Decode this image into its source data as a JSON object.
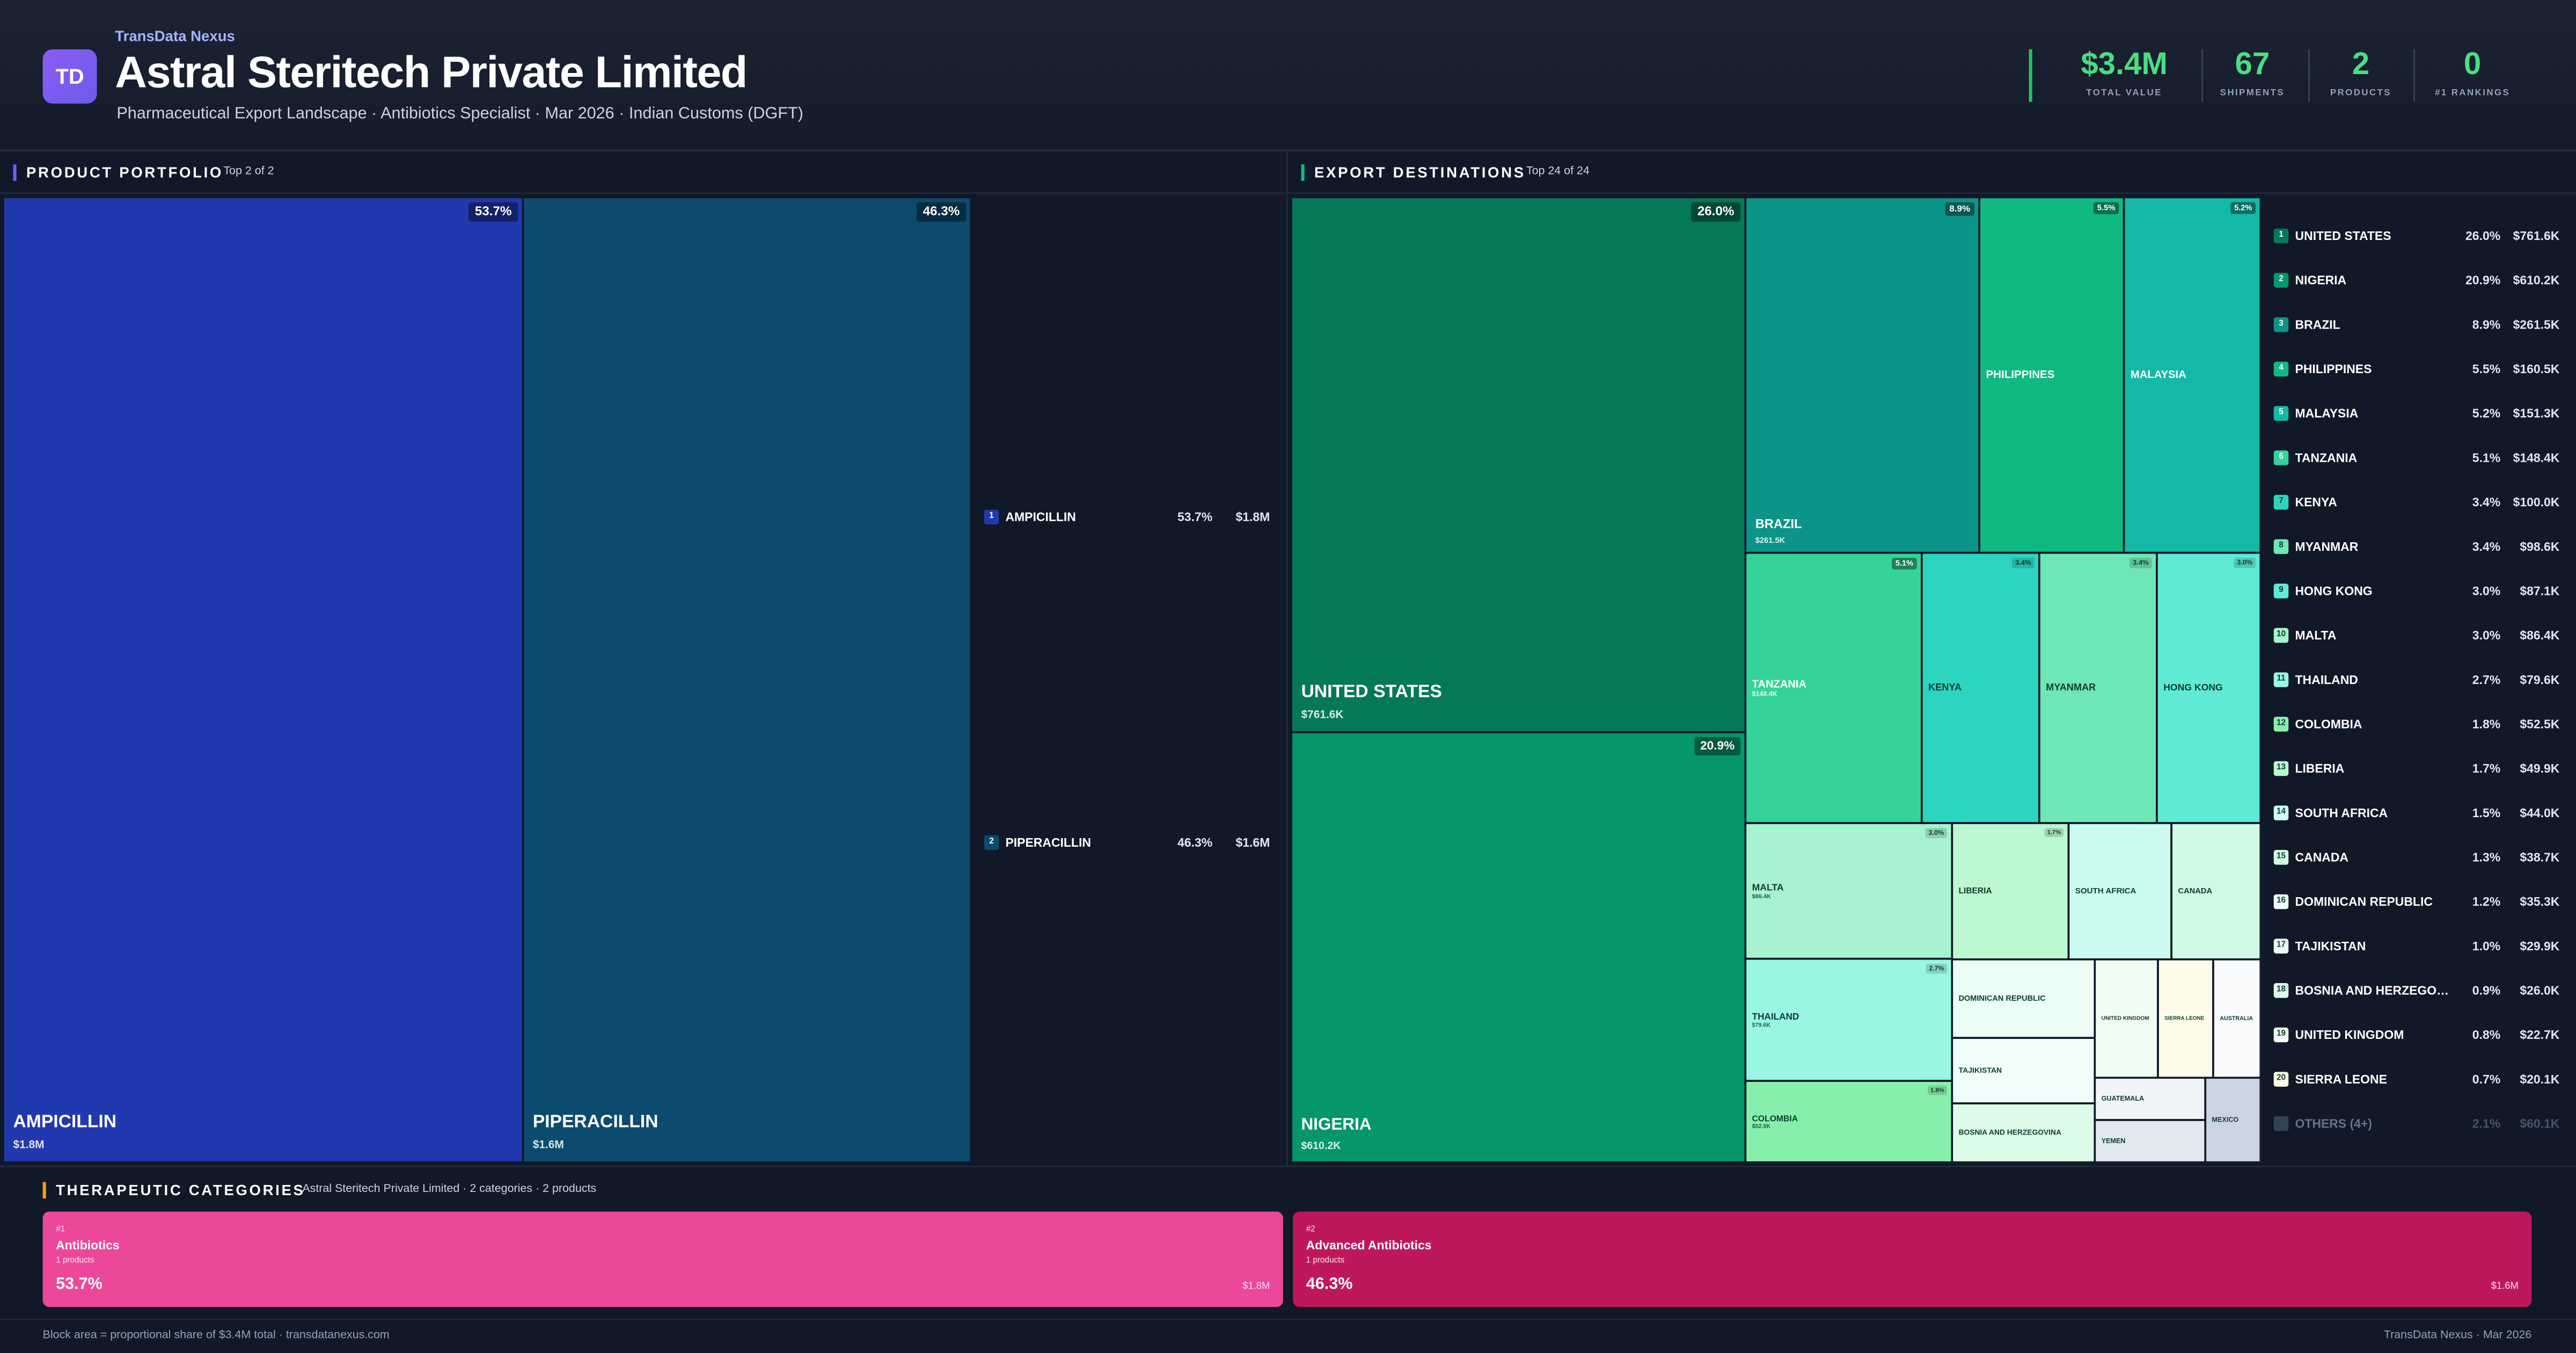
{
  "header": {
    "brand": "TransData Nexus",
    "logo": "TD",
    "title": "Astral Steritech Private Limited",
    "subtitle": "Pharmaceutical Export Landscape · Antibiotics Specialist · Mar 2026 · Indian Customs (DGFT)"
  },
  "kpis": [
    {
      "value": "$3.4M",
      "label": "TOTAL VALUE"
    },
    {
      "value": 67,
      "label": "SHIPMENTS"
    },
    {
      "value": 2,
      "label": "PRODUCTS"
    },
    {
      "value": 0,
      "label": "#1 RANKINGS"
    }
  ],
  "chart_data": [
    {
      "type": "treemap",
      "title": "PRODUCT PORTFOLIO",
      "subtitle": "Top 2 of 2",
      "categories": [
        "AMPICILLIN",
        "PIPERACILLIN"
      ],
      "values": [
        53.7,
        46.3
      ],
      "value_labels": [
        "53.7%",
        "46.3%"
      ],
      "amounts": [
        1800000,
        1600000
      ],
      "amount_labels": [
        "$1.8M",
        "$1.6M"
      ],
      "ranks": [
        1,
        2
      ],
      "colors": [
        "#2139ae",
        "#0c4a6e"
      ]
    },
    {
      "type": "treemap",
      "title": "EXPORT DESTINATIONS",
      "subtitle": "Top 24 of 24",
      "categories": [
        "UNITED STATES",
        "NIGERIA",
        "BRAZIL",
        "PHILIPPINES",
        "MALAYSIA",
        "TANZANIA",
        "KENYA",
        "MYANMAR",
        "HONG KONG",
        "MALTA",
        "THAILAND",
        "COLOMBIA",
        "LIBERIA",
        "SOUTH AFRICA",
        "CANADA",
        "DOMINICAN REPUBLIC",
        "TAJIKISTAN",
        "BOSNIA AND HERZEGOVINA",
        "UNITED KINGDOM",
        "SIERRA LEONE",
        "AUSTRALIA",
        "GUATEMALA",
        "YEMEN",
        "MEXICO"
      ],
      "values": [
        26.0,
        20.9,
        8.9,
        5.5,
        5.2,
        5.1,
        3.4,
        3.4,
        3.0,
        3.0,
        2.7,
        1.8,
        1.7,
        1.5,
        1.3,
        1.2,
        1.0,
        0.9,
        0.8,
        0.7,
        0.6,
        0.5,
        0.5,
        0.5
      ],
      "value_labels": [
        "26.0%",
        "20.9%",
        "8.9%",
        "5.5%",
        "5.2%",
        "5.1%",
        "3.4%",
        "3.4%",
        "3.0%",
        "3.0%",
        "2.7%",
        "1.8%",
        "1.7%",
        "1.5%",
        "1.3%",
        "1.2%",
        "1.0%",
        "0.9%",
        "0.8%",
        "0.7%",
        null,
        null,
        null,
        null
      ],
      "amounts": [
        761600,
        610200,
        261500,
        160500,
        151300,
        148400,
        100000,
        98600,
        87100,
        86400,
        79600,
        52500,
        49900,
        44000,
        38700,
        35300,
        29900,
        26000,
        22700,
        20100,
        null,
        null,
        null,
        null
      ],
      "amount_labels": [
        "$761.6K",
        "$610.2K",
        "$261.5K",
        "$160.5K",
        "$151.3K",
        "$148.4K",
        "$100.0K",
        "$98.6K",
        "$87.1K",
        "$86.4K",
        "$79.6K",
        "$52.5K",
        "$49.9K",
        "$44.0K",
        "$38.7K",
        "$35.3K",
        "$29.9K",
        "$26.0K",
        "$22.7K",
        "$20.1K",
        null,
        null,
        null,
        null
      ],
      "ranks": [
        1,
        2,
        3,
        4,
        5,
        6,
        7,
        8,
        9,
        10,
        11,
        12,
        13,
        14,
        15,
        16,
        17,
        18,
        19,
        20,
        null,
        null,
        null,
        null
      ],
      "colors": [
        "#047857",
        "#059669",
        "#0d9488",
        "#10b981",
        "#14b8a6",
        "#34d399",
        "#2dd4bf",
        "#6ee7b7",
        "#5eead4",
        "#a7f3d0",
        "#99f6e4",
        "#86efac",
        "#bbf7d0",
        "#ccfbf1",
        "#d1fae5",
        "#ecfdf5",
        "#f0fdfa",
        "#dcfce7",
        "#f0fdf4",
        "#fefce8",
        "#f8fafc",
        "#f1f5f9",
        "#e2e8f0",
        "#cbd5e1"
      ],
      "others": {
        "name": "OTHERS (4+)",
        "value": 2.1,
        "value_label": "2.1%",
        "amount": 60100,
        "amount_label": "$60.1K"
      }
    }
  ],
  "therapeutic_categories": {
    "title": "THERAPEUTIC CATEGORIES",
    "subtitle": "Astral Steritech Private Limited · 2 categories · 2 products",
    "cards": [
      {
        "rank": "#1",
        "name": "Antibiotics",
        "count": "1 products",
        "share": "53.7%",
        "amount": "$1.8M",
        "color": "#ec4899"
      },
      {
        "rank": "#2",
        "name": "Advanced Antibiotics",
        "count": "1 products",
        "share": "46.3%",
        "amount": "$1.6M",
        "color": "#be185d"
      }
    ]
  },
  "footer": {
    "left": "Block area = proportional share of $3.4M total · transdatanexus.com",
    "right": "TransData Nexus · Mar 2026"
  }
}
